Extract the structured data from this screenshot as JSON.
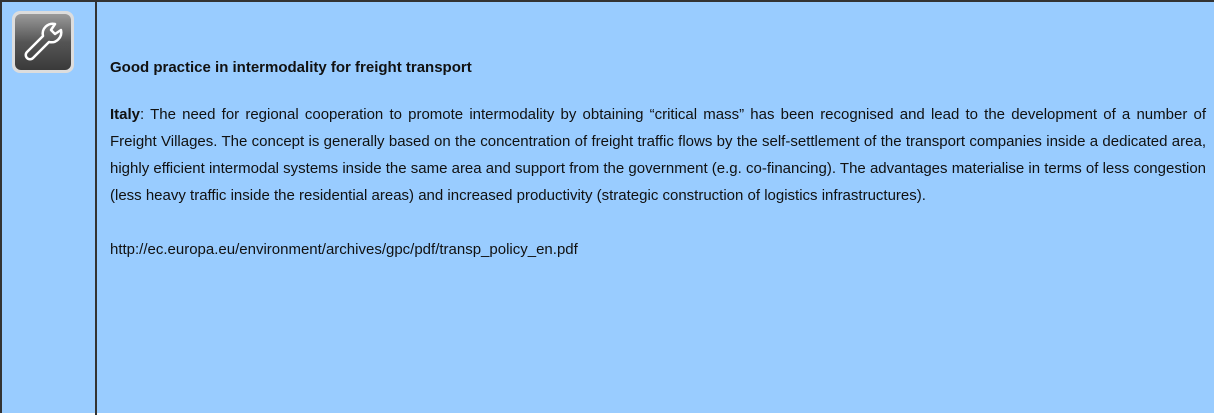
{
  "box": {
    "title": "Good practice in intermodality for freight transport",
    "paragraph": {
      "lead": "Italy",
      "text": ": The need for regional cooperation to promote intermodality by obtaining “critical mass” has been recognised and lead to the development of a number of Freight Villages. The concept is generally based on the concentration of freight traffic flows by the self-settlement of the transport companies inside a dedicated area, highly efficient intermodal systems inside the same area and support from the government (e.g. co-financing). The advantages materialise in terms of less congestion (less heavy traffic inside the residential areas) and increased productivity (strategic construction of logistics infrastructures)."
    },
    "url": "http://ec.europa.eu/environment/archives/gpc/pdf/transp_policy_en.pdf"
  }
}
